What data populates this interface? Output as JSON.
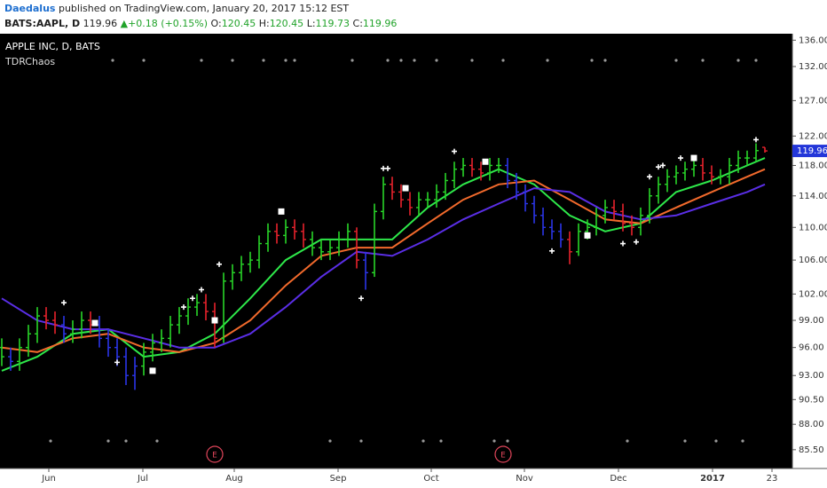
{
  "header": {
    "author": "Daedalus",
    "published": "published on TradingView.com, January 20, 2017 15:12 EST",
    "symbol": "BATS:AAPL, D",
    "price": 119.96,
    "arrow": "▲",
    "change": "+0.18 (+0.15%)",
    "o_label": "O:",
    "open": 120.45,
    "h_label": "H:",
    "high": 120.45,
    "l_label": "L:",
    "low": 119.73,
    "c_label": "C:",
    "close": 119.96
  },
  "chart_data": {
    "type": "ohlc",
    "title": "APPLE INC, D, BATS",
    "indicator": "TDRChaos",
    "log_scale": true,
    "xlim": [
      -0.4,
      178.2
    ],
    "ylim": [
      83.7,
      137.0
    ],
    "xticks": [
      {
        "value": 10.6,
        "label": "Jun"
      },
      {
        "value": 31.8,
        "label": "Jul"
      },
      {
        "value": 52.4,
        "label": "Aug"
      },
      {
        "value": 75.8,
        "label": "Sep"
      },
      {
        "value": 96.8,
        "label": "Oct"
      },
      {
        "value": 117.8,
        "label": "Nov"
      },
      {
        "value": 139,
        "label": "Dec"
      },
      {
        "value": 160.2,
        "label": "2017"
      },
      {
        "value": 173.6,
        "label": "23"
      }
    ],
    "yticks": [
      {
        "value": 136,
        "label": "136.00"
      },
      {
        "value": 132,
        "label": "132.00"
      },
      {
        "value": 127,
        "label": "127.00"
      },
      {
        "value": 122,
        "label": "122.00"
      },
      {
        "value": 118,
        "label": "118.00"
      },
      {
        "value": 114,
        "label": "114.00"
      },
      {
        "value": 110,
        "label": "110.00"
      },
      {
        "value": 106,
        "label": "106.00"
      },
      {
        "value": 102,
        "label": "102.00"
      },
      {
        "value": 99,
        "label": "99.00"
      },
      {
        "value": 96,
        "label": "96.00"
      },
      {
        "value": 93,
        "label": "93.00"
      },
      {
        "value": 90.5,
        "label": "90.50"
      },
      {
        "value": 88,
        "label": "88.00"
      },
      {
        "value": 85.5,
        "label": "85.50"
      }
    ],
    "bars": {
      "x": [
        0,
        2,
        4,
        6,
        8,
        10,
        12,
        14,
        16,
        18,
        20,
        22,
        24,
        26,
        28,
        30,
        32,
        34,
        36,
        38,
        40,
        42,
        44,
        46,
        48,
        50,
        52,
        54,
        56,
        58,
        60,
        62,
        64,
        66,
        68,
        70,
        72,
        74,
        76,
        78,
        80,
        82,
        84,
        86,
        88,
        90,
        92,
        94,
        96,
        98,
        100,
        102,
        104,
        106,
        108,
        110,
        112,
        114,
        116,
        118,
        120,
        122,
        124,
        126,
        128,
        130,
        132,
        134,
        136,
        138,
        140,
        142,
        144,
        146,
        148,
        150,
        152,
        154,
        156,
        158,
        160,
        162,
        164,
        166,
        168,
        170,
        172
      ],
      "open": [
        96,
        95,
        94.5,
        96,
        97.5,
        99.5,
        99,
        98.5,
        97.5,
        98,
        99,
        98.5,
        97,
        96,
        95,
        93,
        94,
        95.5,
        96.5,
        97,
        98.5,
        99.5,
        100.5,
        101,
        100,
        97,
        103.5,
        104.5,
        105.5,
        106,
        108,
        109.5,
        109,
        110,
        109.5,
        108.5,
        107.5,
        107,
        107.5,
        108.5,
        109.5,
        106,
        104.5,
        112,
        115.5,
        114.5,
        113.5,
        112.5,
        113.5,
        113.5,
        114.5,
        116,
        117.5,
        118,
        117.5,
        117,
        118,
        118,
        116,
        114.5,
        113,
        111.5,
        110,
        109.5,
        108.5,
        107,
        109.5,
        110,
        111.5,
        112.5,
        112,
        110.5,
        110,
        111.5,
        114,
        115.5,
        116.5,
        117,
        117.5,
        118,
        117,
        116.5,
        116.5,
        118,
        119,
        119,
        120.45
      ],
      "high": [
        97,
        96,
        97,
        98.5,
        100.5,
        100.5,
        100,
        99.5,
        99,
        100,
        100,
        99.5,
        98,
        97,
        96,
        95,
        96.5,
        97.5,
        98,
        99.5,
        100.5,
        101.5,
        102,
        102,
        101,
        104.5,
        105.5,
        106.5,
        107,
        109,
        110.5,
        110.5,
        111,
        111,
        110.5,
        109.5,
        108.5,
        108.5,
        109.5,
        110.5,
        110,
        107,
        113,
        116.5,
        116.5,
        115.5,
        114.5,
        114.5,
        114.5,
        115.5,
        117,
        118.5,
        119,
        119,
        118.5,
        119,
        119,
        119,
        117,
        115.5,
        114,
        112.5,
        111,
        110.5,
        109.5,
        110.5,
        111,
        112.5,
        113.5,
        113.5,
        113,
        111.5,
        112.5,
        115,
        116.5,
        117.5,
        118,
        118.5,
        119,
        119,
        118,
        117.5,
        119,
        120,
        120,
        121,
        120.45
      ],
      "low": [
        94,
        93.5,
        93.5,
        95,
        96.5,
        98,
        97.5,
        96.5,
        96.5,
        97,
        97.5,
        96,
        95,
        94,
        92,
        91.5,
        93,
        94.5,
        95.5,
        96,
        97.5,
        98.5,
        99.5,
        99,
        96,
        96.5,
        102.5,
        103.5,
        104.5,
        105,
        107,
        108,
        108,
        108.5,
        107.5,
        106.5,
        106,
        106,
        106.5,
        107.5,
        105,
        102.5,
        104,
        111,
        113.5,
        112.5,
        111.5,
        111.5,
        112.5,
        112.5,
        113.5,
        115,
        116.5,
        116.5,
        116,
        116,
        117,
        115,
        113.5,
        112,
        110.5,
        109,
        108.5,
        107.5,
        105.5,
        106.5,
        108.5,
        109,
        110.5,
        111,
        109.5,
        109,
        109,
        110.5,
        113,
        114.5,
        115.5,
        116,
        116.5,
        116,
        115.5,
        115.5,
        115.5,
        117,
        118,
        118.5,
        119.73
      ],
      "close": [
        95,
        94.5,
        96,
        97.5,
        99.5,
        99,
        98.5,
        97.5,
        98,
        99,
        98.5,
        97,
        96,
        95,
        93,
        94,
        95.5,
        96.5,
        97,
        98.5,
        99.5,
        100.5,
        101,
        100,
        97,
        103.5,
        104.5,
        105.5,
        106,
        108,
        109.5,
        109,
        110,
        109.5,
        108.5,
        107.5,
        107,
        107.5,
        108.5,
        109.5,
        106,
        104.5,
        112,
        115.5,
        114.5,
        113.5,
        112.5,
        113.5,
        113.5,
        114.5,
        116,
        117.5,
        118,
        117.5,
        117,
        118,
        118,
        116,
        114.5,
        113,
        111.5,
        110,
        109.5,
        108.5,
        107,
        109.5,
        110,
        111.5,
        112.5,
        112,
        110.5,
        110,
        111.5,
        114,
        115.5,
        116.5,
        117,
        117.5,
        118,
        117,
        116.5,
        116.5,
        118,
        119,
        119,
        120,
        119.96
      ],
      "colors": [
        "#28d628",
        "#2b35e8",
        "#28d628",
        "#28d628",
        "#28d628",
        "#e8222c",
        "#e8222c",
        "#2b35e8",
        "#28d628",
        "#28d628",
        "#e8222c",
        "#2b35e8",
        "#2b35e8",
        "#2b35e8",
        "#2b35e8",
        "#2b35e8",
        "#28d628",
        "#28d628",
        "#28d628",
        "#28d628",
        "#28d628",
        "#28d628",
        "#28d628",
        "#e8222c",
        "#e8222c",
        "#28d628",
        "#28d628",
        "#28d628",
        "#28d628",
        "#28d628",
        "#28d628",
        "#e8222c",
        "#28d628",
        "#e8222c",
        "#e8222c",
        "#28d628",
        "#28d628",
        "#28d628",
        "#28d628",
        "#28d628",
        "#e8222c",
        "#2b35e8",
        "#28d628",
        "#28d628",
        "#e8222c",
        "#e8222c",
        "#e8222c",
        "#28d628",
        "#28d628",
        "#28d628",
        "#28d628",
        "#28d628",
        "#28d628",
        "#e8222c",
        "#e8222c",
        "#28d628",
        "#28d628",
        "#2b35e8",
        "#2b35e8",
        "#2b35e8",
        "#2b35e8",
        "#2b35e8",
        "#2b35e8",
        "#2b35e8",
        "#e8222c",
        "#28d628",
        "#28d628",
        "#28d628",
        "#28d628",
        "#e8222c",
        "#e8222c",
        "#e8222c",
        "#28d628",
        "#28d628",
        "#28d628",
        "#28d628",
        "#28d628",
        "#28d628",
        "#28d628",
        "#e8222c",
        "#e8222c",
        "#28d628",
        "#28d628",
        "#28d628",
        "#28d628",
        "#28d628",
        "#e8222c"
      ]
    },
    "lines": [
      {
        "color": "#2ee84a",
        "x": [
          0,
          8,
          16,
          24,
          32,
          40,
          48,
          56,
          64,
          72,
          80,
          88,
          96,
          104,
          112,
          120,
          128,
          136,
          144,
          152,
          160,
          168,
          172
        ],
        "values": [
          93.5,
          95,
          97.5,
          98,
          95,
          95.5,
          97.5,
          101.5,
          106,
          108.5,
          108.5,
          108.5,
          112.5,
          115.5,
          117.5,
          115.5,
          111.5,
          109.5,
          110.5,
          114.5,
          116,
          118,
          119
        ]
      },
      {
        "color": "#f26a2c",
        "x": [
          0,
          8,
          16,
          24,
          32,
          40,
          48,
          56,
          64,
          72,
          80,
          88,
          96,
          104,
          112,
          120,
          128,
          136,
          144,
          152,
          160,
          168,
          172
        ],
        "values": [
          96,
          95.5,
          97,
          97.5,
          96,
          95.5,
          96.5,
          99,
          103,
          106.5,
          107.5,
          107.5,
          110.5,
          113.5,
          115.5,
          116,
          113.5,
          111,
          110.5,
          112.5,
          114.5,
          116.5,
          117.5
        ]
      },
      {
        "color": "#5a2ee6",
        "x": [
          0,
          8,
          16,
          24,
          32,
          40,
          48,
          56,
          64,
          72,
          80,
          88,
          96,
          104,
          112,
          120,
          128,
          136,
          144,
          152,
          160,
          168,
          172
        ],
        "values": [
          101.5,
          99,
          98,
          98,
          97,
          96,
          96,
          97.5,
          100.5,
          104,
          107,
          106.5,
          108.5,
          111,
          113,
          115,
          114.5,
          112,
          111,
          111.5,
          113,
          114.5,
          115.5
        ]
      }
    ],
    "plus_markers": {
      "x": [
        14,
        26,
        41,
        43,
        45,
        49,
        81,
        86,
        87,
        102,
        124,
        140,
        143,
        146,
        148,
        149,
        153,
        170
      ],
      "y": [
        101,
        94.4,
        100.5,
        101.5,
        102.5,
        105.5,
        101.5,
        117.6,
        117.6,
        119.9,
        107.1,
        108,
        108.2,
        116.5,
        117.8,
        118,
        119,
        121.5
      ]
    },
    "square_markers": {
      "x": [
        21,
        34,
        48,
        63,
        91,
        109,
        132,
        156
      ],
      "y": [
        98.7,
        93.5,
        99,
        112,
        115,
        118.5,
        109,
        119
      ]
    },
    "top_dots": [
      25,
      32,
      45,
      52,
      59,
      64,
      66,
      79,
      87,
      90,
      93,
      98,
      106,
      113,
      123,
      133,
      136,
      152,
      158,
      166,
      170
    ],
    "bottom_dots": [
      11,
      24,
      28,
      35,
      74,
      81,
      95,
      99,
      111,
      114,
      141,
      154,
      161,
      167
    ],
    "earnings": {
      "x": [
        48,
        113
      ],
      "labels": [
        "E",
        "E"
      ]
    }
  }
}
